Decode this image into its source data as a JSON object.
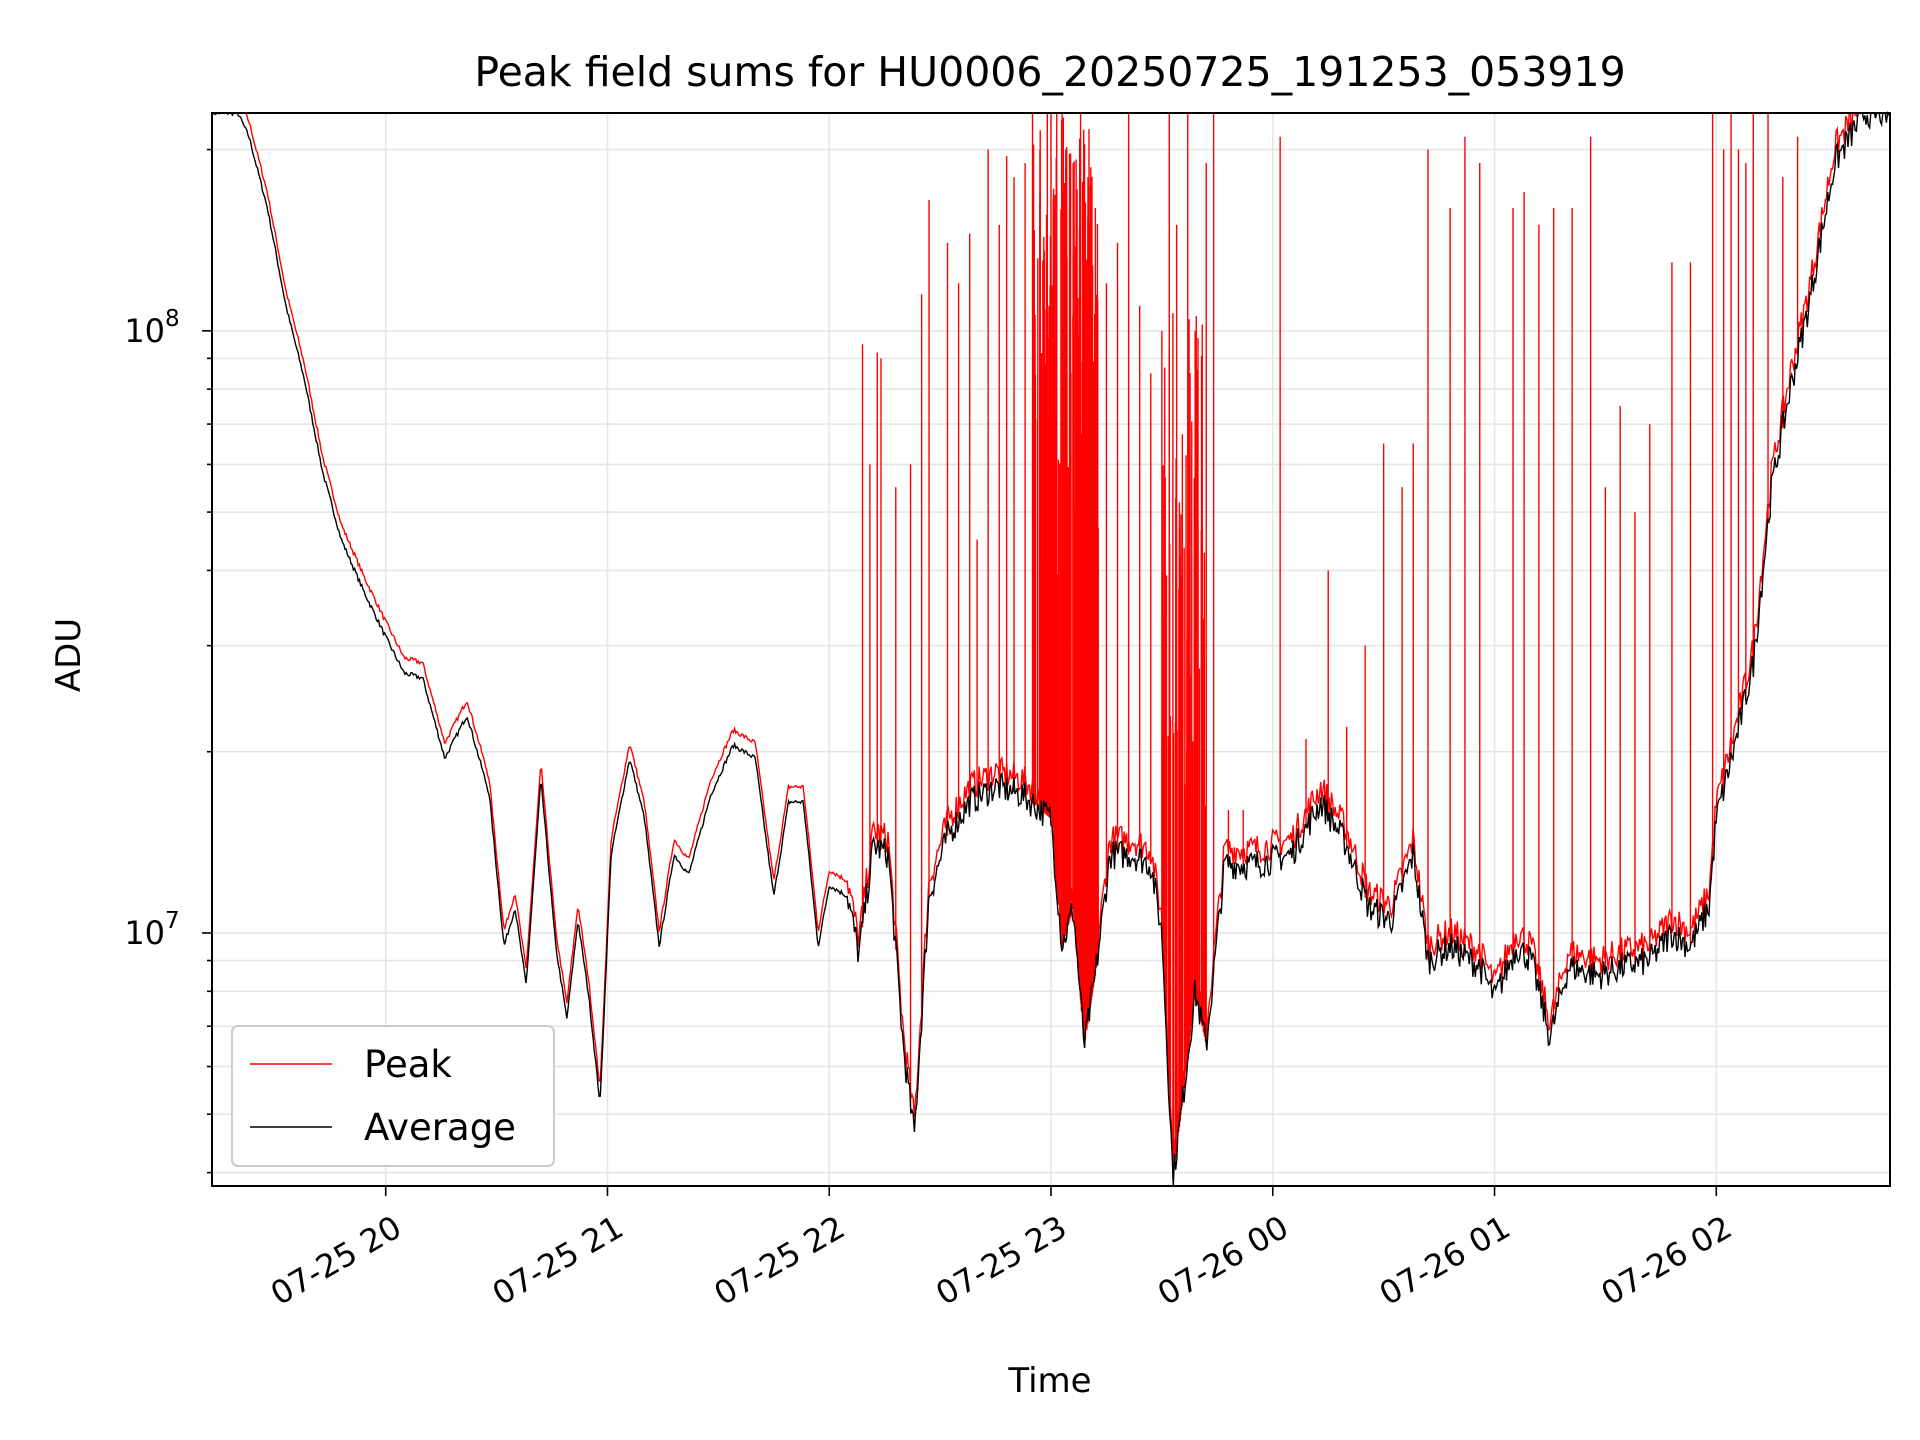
{
  "chart_data": {
    "type": "line",
    "title": "Peak field sums for HU0006_20250725_191253_053919",
    "xlabel": "Time",
    "ylabel": "ADU",
    "yscale": "log",
    "ylim": [
      3800000,
      230000000
    ],
    "xlim": [
      "2025-07-25 19:13",
      "2025-07-26 02:47"
    ],
    "grid": true,
    "legend_position": "lower-left",
    "x_ticks": [
      {
        "t": "2025-07-25 20:00",
        "label": "07-25 20"
      },
      {
        "t": "2025-07-25 21:00",
        "label": "07-25 21"
      },
      {
        "t": "2025-07-25 22:00",
        "label": "07-25 22"
      },
      {
        "t": "2025-07-25 23:00",
        "label": "07-25 23"
      },
      {
        "t": "2025-07-26 00:00",
        "label": "07-26 00"
      },
      {
        "t": "2025-07-26 01:00",
        "label": "07-26 01"
      },
      {
        "t": "2025-07-26 02:00",
        "label": "07-26 02"
      }
    ],
    "y_ticks": [
      {
        "value": 10000000,
        "base": "10",
        "exp": "7"
      },
      {
        "value": 100000000,
        "base": "10",
        "exp": "8"
      }
    ],
    "series": [
      {
        "name": "Average",
        "color": "#000000",
        "points": [
          [
            "2025-07-25 19:13",
            230000000
          ],
          [
            "2025-07-25 19:20",
            230000000
          ],
          [
            "2025-07-25 19:23",
            210000000
          ],
          [
            "2025-07-25 19:28",
            160000000
          ],
          [
            "2025-07-25 19:33",
            110000000
          ],
          [
            "2025-07-25 19:38",
            83000000
          ],
          [
            "2025-07-25 19:43",
            58000000
          ],
          [
            "2025-07-25 19:48",
            45000000
          ],
          [
            "2025-07-25 19:54",
            37000000
          ],
          [
            "2025-07-25 20:00",
            31000000
          ],
          [
            "2025-07-25 20:05",
            27000000
          ],
          [
            "2025-07-25 20:10",
            26500000
          ],
          [
            "2025-07-25 20:16",
            19500000
          ],
          [
            "2025-07-25 20:22",
            23000000
          ],
          [
            "2025-07-25 20:28",
            17000000
          ],
          [
            "2025-07-25 20:32",
            9500000
          ],
          [
            "2025-07-25 20:35",
            11000000
          ],
          [
            "2025-07-25 20:38",
            8200000
          ],
          [
            "2025-07-25 20:42",
            18000000
          ],
          [
            "2025-07-25 20:46",
            9500000
          ],
          [
            "2025-07-25 20:49",
            7200000
          ],
          [
            "2025-07-25 20:52",
            10500000
          ],
          [
            "2025-07-25 20:55",
            7800000
          ],
          [
            "2025-07-25 20:58",
            5200000
          ],
          [
            "2025-07-25 21:01",
            13500000
          ],
          [
            "2025-07-25 21:06",
            19500000
          ],
          [
            "2025-07-25 21:10",
            15500000
          ],
          [
            "2025-07-25 21:14",
            9500000
          ],
          [
            "2025-07-25 21:18",
            13500000
          ],
          [
            "2025-07-25 21:22",
            12500000
          ],
          [
            "2025-07-25 21:28",
            17000000
          ],
          [
            "2025-07-25 21:34",
            20500000
          ],
          [
            "2025-07-25 21:40",
            19500000
          ],
          [
            "2025-07-25 21:45",
            11500000
          ],
          [
            "2025-07-25 21:49",
            16500000
          ],
          [
            "2025-07-25 21:53",
            16500000
          ],
          [
            "2025-07-25 21:57",
            9500000
          ],
          [
            "2025-07-25 22:00",
            12000000
          ],
          [
            "2025-07-25 22:05",
            11500000
          ],
          [
            "2025-07-25 22:08",
            9200000
          ],
          [
            "2025-07-25 22:12",
            14000000
          ],
          [
            "2025-07-25 22:16",
            13500000
          ],
          [
            "2025-07-25 22:20",
            6500000
          ],
          [
            "2025-07-25 22:23",
            4600000
          ],
          [
            "2025-07-25 22:27",
            11500000
          ],
          [
            "2025-07-25 22:32",
            14500000
          ],
          [
            "2025-07-25 22:38",
            16500000
          ],
          [
            "2025-07-25 22:45",
            17500000
          ],
          [
            "2025-07-25 22:52",
            17000000
          ],
          [
            "2025-07-25 23:00",
            15500000
          ],
          [
            "2025-07-25 23:03",
            9500000
          ],
          [
            "2025-07-25 23:06",
            11000000
          ],
          [
            "2025-07-25 23:09",
            6500000
          ],
          [
            "2025-07-25 23:12",
            8500000
          ],
          [
            "2025-07-25 23:16",
            13500000
          ],
          [
            "2025-07-25 23:22",
            13500000
          ],
          [
            "2025-07-25 23:27",
            13000000
          ],
          [
            "2025-07-25 23:30",
            10000000
          ],
          [
            "2025-07-25 23:33",
            3900000
          ],
          [
            "2025-07-25 23:36",
            5500000
          ],
          [
            "2025-07-25 23:39",
            8000000
          ],
          [
            "2025-07-25 23:42",
            6500000
          ],
          [
            "2025-07-25 23:47",
            13000000
          ],
          [
            "2025-07-25 23:55",
            13000000
          ],
          [
            "2025-07-26 00:05",
            13500000
          ],
          [
            "2025-07-26 00:13",
            16500000
          ],
          [
            "2025-07-26 00:20",
            14000000
          ],
          [
            "2025-07-26 00:26",
            11000000
          ],
          [
            "2025-07-26 00:32",
            10500000
          ],
          [
            "2025-07-26 00:38",
            13500000
          ],
          [
            "2025-07-26 00:42",
            9000000
          ],
          [
            "2025-07-26 00:48",
            9500000
          ],
          [
            "2025-07-26 00:56",
            8800000
          ],
          [
            "2025-07-26 01:00",
            7800000
          ],
          [
            "2025-07-26 01:06",
            9500000
          ],
          [
            "2025-07-26 01:10",
            9000000
          ],
          [
            "2025-07-26 01:15",
            6700000
          ],
          [
            "2025-07-26 01:20",
            8800000
          ],
          [
            "2025-07-26 01:28",
            8500000
          ],
          [
            "2025-07-26 01:35",
            8800000
          ],
          [
            "2025-07-26 01:42",
            9000000
          ],
          [
            "2025-07-26 01:48",
            10000000
          ],
          [
            "2025-07-26 01:53",
            9500000
          ],
          [
            "2025-07-26 01:58",
            11000000
          ],
          [
            "2025-07-26 02:00",
            15500000
          ],
          [
            "2025-07-26 02:05",
            20500000
          ],
          [
            "2025-07-26 02:10",
            28000000
          ],
          [
            "2025-07-26 02:15",
            55000000
          ],
          [
            "2025-07-26 02:20",
            80000000
          ],
          [
            "2025-07-26 02:25",
            110000000
          ],
          [
            "2025-07-26 02:32",
            190000000
          ],
          [
            "2025-07-26 02:40",
            230000000
          ]
        ]
      },
      {
        "name": "Peak",
        "color": "#ff0000",
        "spike_fraction_of_average": 1.06,
        "spikes": [
          [
            "2025-07-25 22:09",
            95000000
          ],
          [
            "2025-07-25 22:11",
            60000000
          ],
          [
            "2025-07-25 22:13",
            92000000
          ],
          [
            "2025-07-25 22:14",
            90000000
          ],
          [
            "2025-07-25 22:18",
            55000000
          ],
          [
            "2025-07-25 22:22",
            60000000
          ],
          [
            "2025-07-25 22:25",
            115000000
          ],
          [
            "2025-07-25 22:27",
            165000000
          ],
          [
            "2025-07-25 22:32",
            140000000
          ],
          [
            "2025-07-25 22:35",
            120000000
          ],
          [
            "2025-07-25 22:38",
            145000000
          ],
          [
            "2025-07-25 22:40",
            45000000
          ],
          [
            "2025-07-25 22:43",
            200000000
          ],
          [
            "2025-07-25 22:46",
            150000000
          ],
          [
            "2025-07-25 22:48",
            195000000
          ],
          [
            "2025-07-25 22:50",
            180000000
          ],
          [
            "2025-07-25 22:53",
            190000000
          ],
          [
            "2025-07-25 22:55",
            230000000
          ],
          [
            "2025-07-25 22:57",
            200000000
          ],
          [
            "2025-07-25 22:59",
            230000000
          ],
          [
            "2025-07-25 23:00",
            230000000
          ],
          [
            "2025-07-25 23:01",
            160000000
          ],
          [
            "2025-07-25 23:03",
            230000000
          ],
          [
            "2025-07-25 23:04",
            200000000
          ],
          [
            "2025-07-25 23:06",
            190000000
          ],
          [
            "2025-07-25 23:08",
            230000000
          ],
          [
            "2025-07-25 23:10",
            180000000
          ],
          [
            "2025-07-25 23:12",
            160000000
          ],
          [
            "2025-07-25 23:15",
            120000000
          ],
          [
            "2025-07-25 23:18",
            140000000
          ],
          [
            "2025-07-25 23:21",
            230000000
          ],
          [
            "2025-07-25 23:24",
            110000000
          ],
          [
            "2025-07-25 23:27",
            85000000
          ],
          [
            "2025-07-25 23:30",
            100000000
          ],
          [
            "2025-07-25 23:32",
            230000000
          ],
          [
            "2025-07-25 23:34",
            150000000
          ],
          [
            "2025-07-25 23:37",
            230000000
          ],
          [
            "2025-07-25 23:39",
            100000000
          ],
          [
            "2025-07-25 23:42",
            190000000
          ],
          [
            "2025-07-25 23:44",
            230000000
          ],
          [
            "2025-07-25 23:48",
            16000000
          ],
          [
            "2025-07-25 23:52",
            16000000
          ],
          [
            "2025-07-26 00:02",
            210000000
          ],
          [
            "2025-07-26 00:09",
            21000000
          ],
          [
            "2025-07-26 00:15",
            40000000
          ],
          [
            "2025-07-26 00:20",
            22000000
          ],
          [
            "2025-07-26 00:25",
            30000000
          ],
          [
            "2025-07-26 00:30",
            65000000
          ],
          [
            "2025-07-26 00:35",
            55000000
          ],
          [
            "2025-07-26 00:38",
            65000000
          ],
          [
            "2025-07-26 00:42",
            200000000
          ],
          [
            "2025-07-26 00:48",
            160000000
          ],
          [
            "2025-07-26 00:52",
            210000000
          ],
          [
            "2025-07-26 00:56",
            190000000
          ],
          [
            "2025-07-26 01:05",
            160000000
          ],
          [
            "2025-07-26 01:08",
            170000000
          ],
          [
            "2025-07-26 01:12",
            150000000
          ],
          [
            "2025-07-26 01:16",
            160000000
          ],
          [
            "2025-07-26 01:21",
            160000000
          ],
          [
            "2025-07-26 01:26",
            210000000
          ],
          [
            "2025-07-26 01:30",
            55000000
          ],
          [
            "2025-07-26 01:34",
            75000000
          ],
          [
            "2025-07-26 01:38",
            50000000
          ],
          [
            "2025-07-26 01:42",
            70000000
          ],
          [
            "2025-07-26 01:48",
            130000000
          ],
          [
            "2025-07-26 01:53",
            130000000
          ],
          [
            "2025-07-26 01:59",
            230000000
          ],
          [
            "2025-07-26 02:02",
            200000000
          ],
          [
            "2025-07-26 02:04",
            230000000
          ],
          [
            "2025-07-26 02:06",
            200000000
          ],
          [
            "2025-07-26 02:08",
            190000000
          ],
          [
            "2025-07-26 02:10",
            230000000
          ],
          [
            "2025-07-26 02:14",
            230000000
          ],
          [
            "2025-07-26 02:18",
            180000000
          ],
          [
            "2025-07-26 02:22",
            210000000
          ]
        ]
      }
    ]
  }
}
